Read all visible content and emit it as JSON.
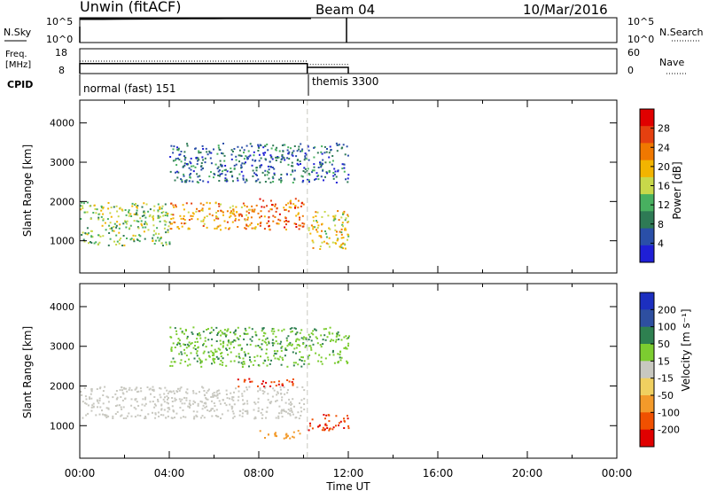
{
  "header": {
    "station": "Unwin (fitACF)",
    "beam": "Beam 04",
    "date": "10/Mar/2016"
  },
  "colors": {
    "power_scale": [
      "#1f1fd6",
      "#2a4fa8",
      "#2e7a55",
      "#48b060",
      "#c8d84a",
      "#f2b400",
      "#f07800",
      "#e54010",
      "#e00000"
    ],
    "velocity_scale": [
      "#e00000",
      "#f05000",
      "#f39a2a",
      "#f0d060",
      "#c8c8c0",
      "#7ccc30",
      "#2e8050",
      "#2e4fa0",
      "#1c2fc0"
    ],
    "sky_line": "#000000",
    "ground_scatter": "#b8b8b0"
  },
  "chart_data": [
    {
      "type": "line",
      "panel": "sky-search",
      "left_label": "N.Sky",
      "right_label": "N.Search",
      "left_ticks": [
        "10^5",
        "10^0"
      ],
      "right_ticks": [
        "10^5",
        "10^0"
      ],
      "x": [
        "00:00",
        "01:00",
        "02:00",
        "03:00",
        "04:00",
        "05:00",
        "06:00",
        "07:00",
        "08:00",
        "09:00",
        "10:00",
        "10:20"
      ],
      "series": [
        {
          "values": [
            200000,
            200000,
            220000,
            240000,
            260000,
            280000,
            290000,
            300000,
            300000,
            300000,
            300000,
            300000
          ]
        }
      ]
    },
    {
      "type": "line",
      "panel": "freq-nave",
      "left_label": "Freq. [MHz]",
      "right_label": "Nave",
      "left_ticks": [
        "18",
        "8"
      ],
      "right_ticks": [
        "60",
        "0"
      ],
      "segments": [
        {
          "start": "00:00",
          "end": "10:10",
          "freq": 12.0,
          "nave": 30
        },
        {
          "start": "10:10",
          "end": "12:00",
          "freq": 10.5,
          "nave": 22
        }
      ]
    },
    {
      "type": "table",
      "panel": "cpid",
      "label": "CPID",
      "programs": [
        {
          "start": "00:00",
          "end": "10:10",
          "name": "normal (fast) 151"
        },
        {
          "start": "10:10",
          "end": "12:00",
          "name": "themis 3300"
        }
      ]
    },
    {
      "type": "heatmap",
      "panel": "power",
      "ylabel": "Slant Range [km]",
      "yticks": [
        1000,
        2000,
        3000,
        4000
      ],
      "ylim": [
        180,
        4580
      ],
      "xlim": [
        0,
        24
      ],
      "colorbar_label": "Power [dB]",
      "colorbar_ticks": [
        4,
        8,
        12,
        16,
        20,
        24,
        28
      ],
      "scatter_bands": [
        {
          "t0": 0.0,
          "t1": 4.0,
          "r0": 900,
          "r1": 2000,
          "level": 16
        },
        {
          "t0": 4.0,
          "t1": 8.0,
          "r0": 1300,
          "r1": 2000,
          "level": 24
        },
        {
          "t0": 8.0,
          "t1": 10.0,
          "r0": 1300,
          "r1": 2100,
          "level": 28
        },
        {
          "t0": 10.2,
          "t1": 12.0,
          "r0": 800,
          "r1": 1800,
          "level": 20
        },
        {
          "t0": 4.0,
          "t1": 12.0,
          "r0": 2500,
          "r1": 3500,
          "level": 8
        }
      ]
    },
    {
      "type": "heatmap",
      "panel": "velocity",
      "ylabel": "Slant Range [km]",
      "yticks": [
        1000,
        2000,
        3000,
        4000
      ],
      "ylim": [
        180,
        4580
      ],
      "xlim": [
        0,
        24
      ],
      "xlabel": "Time UT",
      "xticks": [
        "00:00",
        "04:00",
        "08:00",
        "12:00",
        "16:00",
        "20:00",
        "00:00"
      ],
      "colorbar_label": "Velocity [m s^-1]",
      "colorbar_ticks": [
        200,
        100,
        50,
        15,
        -15,
        -50,
        -100,
        -200
      ],
      "scatter_bands": [
        {
          "t0": 0.0,
          "t1": 10.0,
          "r0": 1200,
          "r1": 2000,
          "level": 0
        },
        {
          "t0": 7.0,
          "t1": 9.5,
          "r0": 2000,
          "r1": 2200,
          "level": -200
        },
        {
          "t0": 10.2,
          "t1": 12.0,
          "r0": 900,
          "r1": 1300,
          "level": -200
        },
        {
          "t0": 8.0,
          "t1": 10.0,
          "r0": 700,
          "r1": 900,
          "level": -100
        },
        {
          "t0": 4.0,
          "t1": 12.0,
          "r0": 2500,
          "r1": 3500,
          "level": 50
        }
      ]
    }
  ]
}
